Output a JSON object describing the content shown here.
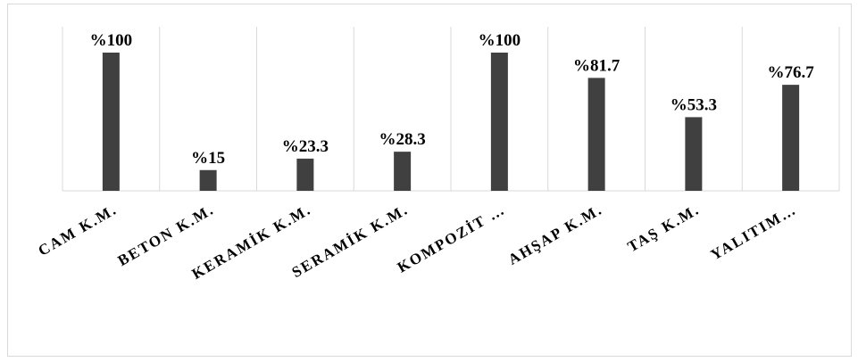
{
  "chart_data": {
    "type": "bar",
    "categories": [
      "CAM K.M.",
      "BETON K.M.",
      "KERAMİK K.M.",
      "SERAMİK  K.M.",
      "KOMPOZİT …",
      "AHŞAP  K.M.",
      "TAŞ  K.M.",
      "YALITIM…"
    ],
    "values": [
      100,
      15,
      23.3,
      28.3,
      100,
      81.7,
      53.3,
      76.7
    ],
    "value_labels": [
      "%100",
      "%15",
      "%23.3",
      "%28.3",
      "%100",
      "%81.7",
      "%53.3",
      "%76.7"
    ],
    "title": "",
    "xlabel": "",
    "ylabel": "",
    "ylim": [
      0,
      100
    ],
    "grid": "vertical category separators",
    "legend": "none",
    "bar_color": "#404040",
    "grid_color": "#d9d9d9"
  }
}
